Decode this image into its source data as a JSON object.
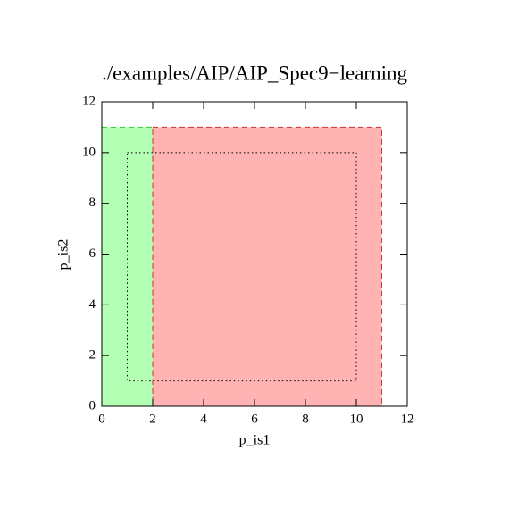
{
  "chart_data": {
    "type": "rect",
    "title": "./examples/AIP/AIP_Spec9−learning",
    "xlabel": "p_is1",
    "ylabel": "p_is2",
    "xlim": [
      0,
      12
    ],
    "ylim": [
      0,
      12
    ],
    "xticks": [
      0,
      2,
      4,
      6,
      8,
      10,
      12
    ],
    "yticks": [
      0,
      2,
      4,
      6,
      8,
      10,
      12
    ],
    "rects": [
      {
        "x": [
          0,
          2
        ],
        "y": [
          0,
          11
        ],
        "color": "#b3ffb3",
        "edge": "#33cc33",
        "dash": "dashed"
      },
      {
        "x": [
          2,
          11
        ],
        "y": [
          0,
          11
        ],
        "color": "#ffb3b3",
        "edge": "#cc3333",
        "dash": "dashed"
      },
      {
        "x": [
          1,
          10
        ],
        "y": [
          1,
          10
        ],
        "color": "none",
        "edge": "#000000",
        "dash": "dotted"
      }
    ]
  }
}
